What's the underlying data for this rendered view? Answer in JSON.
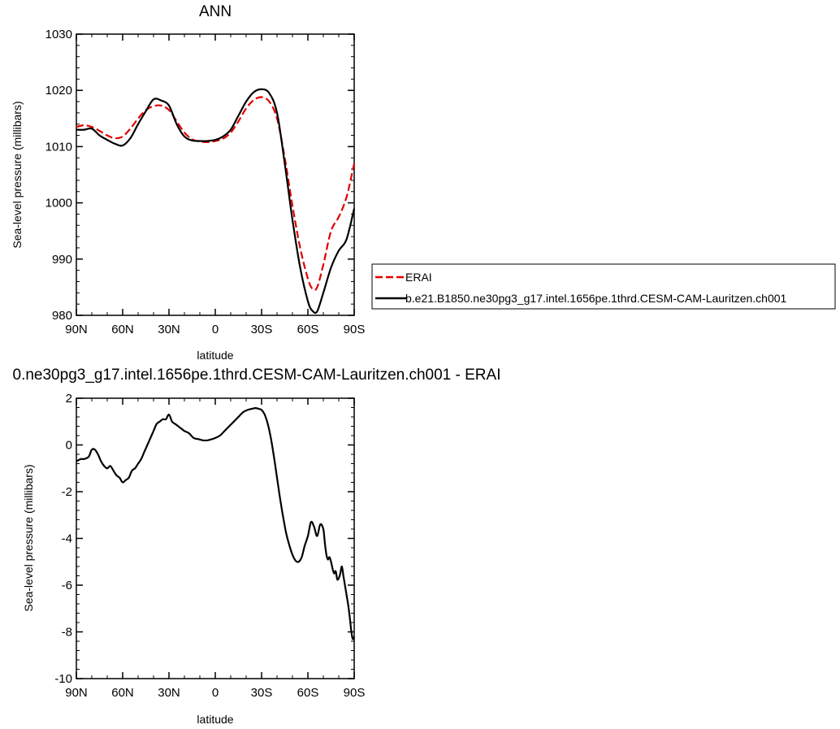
{
  "chart_data": [
    {
      "type": "line",
      "title": "ANN",
      "xlabel": "latitude",
      "ylabel": "Sea-level pressure (millibars)",
      "xlim": [
        90,
        -90
      ],
      "ylim": [
        980,
        1030
      ],
      "x_ticks": [
        90,
        60,
        30,
        0,
        -30,
        -60,
        -90
      ],
      "x_tick_labels": [
        "90N",
        "60N",
        "30N",
        "0",
        "30S",
        "60S",
        "90S"
      ],
      "y_ticks": [
        980,
        990,
        1000,
        1010,
        1020,
        1030
      ],
      "y_tick_labels": [
        "980",
        "990",
        "1000",
        "1010",
        "1020",
        "1030"
      ],
      "legend_position": "right",
      "series": [
        {
          "name": "ERAI",
          "color": "#e00000",
          "dash": "dashed",
          "x": [
            90,
            85,
            80,
            75,
            70,
            65,
            60,
            55,
            50,
            45,
            40,
            35,
            30,
            25,
            20,
            15,
            10,
            5,
            0,
            -5,
            -10,
            -15,
            -20,
            -25,
            -30,
            -35,
            -40,
            -45,
            -50,
            -55,
            -60,
            -63,
            -66,
            -70,
            -75,
            -80,
            -85,
            -90
          ],
          "y": [
            1013.5,
            1013.8,
            1013.5,
            1012.8,
            1012.0,
            1011.5,
            1011.8,
            1013.2,
            1015.0,
            1016.5,
            1017.2,
            1017.3,
            1016.5,
            1014.5,
            1012.5,
            1011.3,
            1010.9,
            1010.8,
            1011.0,
            1011.4,
            1012.5,
            1014.5,
            1016.8,
            1018.3,
            1018.8,
            1018.0,
            1015.0,
            1008.0,
            999.5,
            992.0,
            986.5,
            984.7,
            985.0,
            989.0,
            995.0,
            997.5,
            1001.0,
            1007.0
          ]
        },
        {
          "name": "b.e21.B1850.ne30pg3_g17.intel.1656pe.1thrd.CESM-CAM-Lauritzen.ch001",
          "color": "#000000",
          "dash": "solid",
          "x": [
            90,
            85,
            80,
            75,
            70,
            65,
            60,
            55,
            50,
            45,
            40,
            35,
            30,
            25,
            20,
            15,
            10,
            5,
            0,
            -5,
            -10,
            -15,
            -20,
            -25,
            -30,
            -35,
            -40,
            -45,
            -50,
            -55,
            -60,
            -63,
            -66,
            -70,
            -75,
            -80,
            -85,
            -90
          ],
          "y": [
            1013.0,
            1013.0,
            1013.2,
            1012.0,
            1011.2,
            1010.5,
            1010.2,
            1011.5,
            1014.0,
            1016.3,
            1018.4,
            1018.2,
            1017.3,
            1014.0,
            1011.8,
            1011.1,
            1011.0,
            1011.0,
            1011.2,
            1011.8,
            1013.0,
            1015.5,
            1018.0,
            1019.7,
            1020.2,
            1019.5,
            1016.0,
            1007.0,
            997.0,
            988.5,
            982.5,
            980.8,
            980.7,
            984.0,
            988.5,
            991.5,
            993.5,
            999.0
          ]
        }
      ]
    },
    {
      "type": "line",
      "title": "0.ne30pg3_g17.intel.1656pe.1thrd.CESM-CAM-Lauritzen.ch001 - ERAI",
      "xlabel": "latitude",
      "ylabel": "Sea-level pressure (millibars)",
      "xlim": [
        90,
        -90
      ],
      "ylim": [
        -10,
        2
      ],
      "x_ticks": [
        90,
        60,
        30,
        0,
        -30,
        -60,
        -90
      ],
      "x_tick_labels": [
        "90N",
        "60N",
        "30N",
        "0",
        "30S",
        "60S",
        "90S"
      ],
      "y_ticks": [
        -10,
        -8,
        -6,
        -4,
        -2,
        0,
        2
      ],
      "y_tick_labels": [
        "-10",
        "-8",
        "-6",
        "-4",
        "-2",
        "0",
        "2"
      ],
      "series": [
        {
          "color": "#000000",
          "dash": "solid",
          "x": [
            90,
            87,
            85,
            82,
            80,
            78,
            76,
            74,
            72,
            70,
            68,
            66,
            64,
            62,
            60,
            58,
            56,
            54,
            52,
            50,
            48,
            46,
            44,
            42,
            40,
            38,
            36,
            34,
            32,
            30,
            28,
            26,
            24,
            22,
            20,
            17,
            14,
            11,
            8,
            5,
            2,
            0,
            -3,
            -6,
            -9,
            -12,
            -15,
            -18,
            -21,
            -24,
            -26,
            -28,
            -30,
            -32,
            -34,
            -36,
            -38,
            -40,
            -42,
            -44,
            -46,
            -48,
            -50,
            -52,
            -54,
            -56,
            -58,
            -60,
            -62,
            -64,
            -66,
            -68,
            -70,
            -71,
            -72,
            -73,
            -74,
            -75,
            -76,
            -77,
            -78,
            -79,
            -80,
            -81,
            -82,
            -83,
            -84,
            -85,
            -86,
            -87,
            -88,
            -89,
            -90
          ],
          "y": [
            -0.7,
            -0.6,
            -0.6,
            -0.5,
            -0.2,
            -0.2,
            -0.4,
            -0.7,
            -0.9,
            -1.0,
            -0.9,
            -1.1,
            -1.3,
            -1.4,
            -1.6,
            -1.5,
            -1.4,
            -1.1,
            -1.0,
            -0.8,
            -0.6,
            -0.3,
            0.0,
            0.3,
            0.6,
            0.9,
            1.0,
            1.1,
            1.1,
            1.3,
            1.0,
            0.9,
            0.8,
            0.7,
            0.6,
            0.5,
            0.3,
            0.25,
            0.2,
            0.2,
            0.25,
            0.3,
            0.4,
            0.6,
            0.8,
            1.0,
            1.2,
            1.4,
            1.5,
            1.55,
            1.58,
            1.55,
            1.5,
            1.3,
            0.9,
            0.3,
            -0.5,
            -1.4,
            -2.3,
            -3.1,
            -3.8,
            -4.3,
            -4.7,
            -4.95,
            -5.0,
            -4.8,
            -4.3,
            -3.9,
            -3.3,
            -3.5,
            -3.9,
            -3.4,
            -3.6,
            -4.2,
            -4.7,
            -4.9,
            -4.8,
            -5.0,
            -5.3,
            -5.5,
            -5.4,
            -5.75,
            -5.7,
            -5.5,
            -5.2,
            -5.6,
            -6.0,
            -6.4,
            -6.8,
            -7.3,
            -7.9,
            -8.3,
            -8.2
          ]
        }
      ]
    }
  ]
}
